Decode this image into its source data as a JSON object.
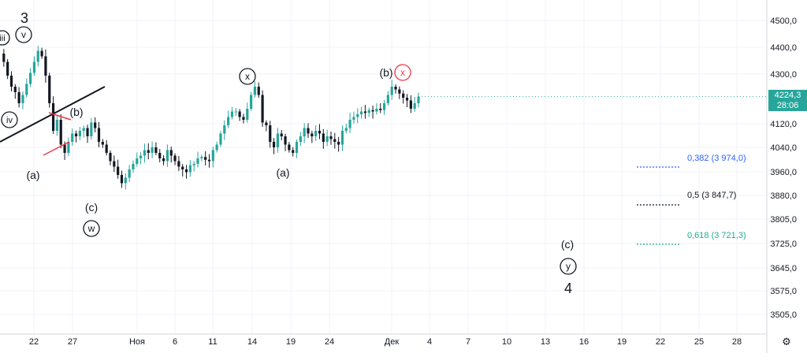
{
  "chart_data": {
    "type": "candlestick",
    "y_axis": {
      "ticks": [
        "4500,0",
        "4400,0",
        "4300,0",
        "4224,3",
        "4120,0",
        "4040,0",
        "3960,0",
        "3880,0",
        "3805,0",
        "3725,0",
        "3645,0",
        "3575,0",
        "3505,0"
      ],
      "ylim": [
        3460,
        4560
      ]
    },
    "x_axis": {
      "ticks": [
        "22",
        "27",
        "Ноя",
        "6",
        "11",
        "14",
        "19",
        "24",
        "Дек",
        "4",
        "7",
        "10",
        "13",
        "16",
        "19",
        "22",
        "25",
        "28"
      ]
    },
    "current_price": {
      "value": "4224,3",
      "timer": "28:06",
      "color": "#26a69a"
    },
    "price_path": [
      4380,
      4350,
      4300,
      4260,
      4240,
      4200,
      4230,
      4270,
      4310,
      4350,
      4390,
      4370,
      4300,
      4200,
      4100,
      4140,
      4050,
      4020,
      4060,
      4090,
      4080,
      4100,
      4110,
      4080,
      4130,
      4110,
      4060,
      4050,
      4020,
      3990,
      3970,
      3940,
      3910,
      3930,
      3960,
      3980,
      4000,
      4010,
      4030,
      4020,
      4040,
      4020,
      4000,
      3990,
      4030,
      4010,
      3990,
      3970,
      3960,
      3950,
      3975,
      3980,
      4000,
      4005,
      3995,
      3990,
      4030,
      4050,
      4090,
      4120,
      4150,
      4170,
      4170,
      4150,
      4140,
      4180,
      4230,
      4260,
      4230,
      4130,
      4120,
      4060,
      4040,
      4090,
      4080,
      4050,
      4030,
      4020,
      4060,
      4080,
      4110,
      4090,
      4080,
      4100,
      4090,
      4060,
      4080,
      4070,
      4060,
      4050,
      4100,
      4110,
      4140,
      4150,
      4160,
      4170,
      4165,
      4175,
      4170,
      4180,
      4175,
      4200,
      4230,
      4260,
      4250,
      4235,
      4220,
      4210,
      4180,
      4200,
      4224
    ]
  },
  "waves": {
    "label_3": "3",
    "label_iii": "iii",
    "label_v": "v",
    "label_iv": "iv",
    "label_a1": "(a)",
    "label_b1": "(b)",
    "label_c1": "(c)",
    "label_w": "w",
    "label_x1": "x",
    "label_a2": "(a)",
    "label_b2": "(b)",
    "label_x2": "x",
    "label_c2": "(c)",
    "label_y": "y",
    "label_4": "4"
  },
  "fibonacci": [
    {
      "text": "0,382 (3 974,0)",
      "color": "#2962ff"
    },
    {
      "text": "0,5 (3 847,7)",
      "color": "#131722"
    },
    {
      "text": "0,618 (3 721,3)",
      "color": "#22ab94"
    }
  ],
  "colors": {
    "up": "#26a69a",
    "down": "#131722",
    "red": "#f23645",
    "grid": "#f0f3fa"
  }
}
